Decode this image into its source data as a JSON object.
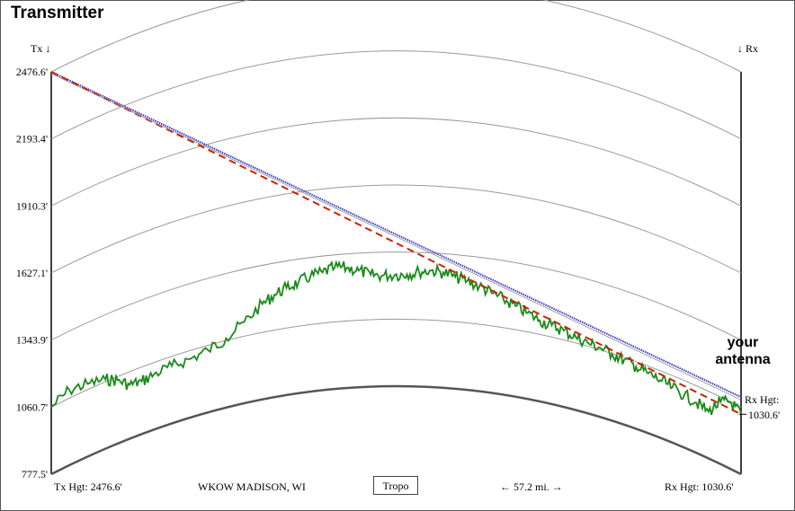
{
  "title": "Transmitter",
  "tx_marker": "Tx ↓",
  "rx_marker": "↓ Rx",
  "antenna_label_line1": "your",
  "antenna_label_line2": "antenna",
  "rx_hgt_label": "Rx Hgt:",
  "rx_hgt_value": "1030.6'",
  "footer": {
    "tx_hgt": "Tx Hgt: 2476.6'",
    "station": "WKOW MADISON, WI",
    "button": "Tropo",
    "distance": "← 57.2 mi. →",
    "rx_hgt": "Rx Hgt: 1030.6'"
  },
  "colors": {
    "terrain": "#1a8a1a",
    "los_path": "#3333cc",
    "refracted_path": "#cc2200",
    "arcs": "#999999",
    "earth_curve": "#555555"
  },
  "chart_data": {
    "type": "line",
    "title": "Transmitter",
    "y_tick_labels": [
      "2476.6'",
      "2193.4'",
      "1910.3'",
      "1627.1'",
      "1343.9'",
      "1060.7'",
      "777.5'"
    ],
    "ylim": [
      777.5,
      2476.6
    ],
    "xlim": [
      0,
      57.2
    ],
    "x_unit": "mi.",
    "tx_height": 2476.6,
    "rx_height": 1030.6,
    "series": [
      {
        "role": "terrain",
        "x": [
          0,
          1.5,
          3,
          4.5,
          5.5,
          6.5,
          7.5,
          8.5,
          10,
          11.5,
          13,
          14.5,
          16,
          17.5,
          18.5,
          19.5,
          20.5,
          21.5,
          22.5,
          23.5,
          24.5,
          25.5,
          26.5,
          27.5,
          28.5,
          29.5,
          30.5,
          31.5,
          32.5,
          33.5,
          34.5,
          35.5,
          36.5,
          37.5,
          38.5,
          39.5,
          40.5,
          41.5,
          42.5,
          43.5,
          44.5,
          45.5,
          46.5,
          47.5,
          48.5,
          49.5,
          50.5,
          51.5,
          52.5,
          53.5,
          54.5,
          55.5,
          56.3,
          57.2
        ],
        "values": [
          1060,
          1095,
          1085,
          1070,
          1045,
          1005,
          1000,
          1010,
          1020,
          1025,
          1040,
          1070,
          1120,
          1180,
          1210,
          1230,
          1245,
          1265,
          1275,
          1290,
          1285,
          1270,
          1250,
          1245,
          1248,
          1250,
          1262,
          1270,
          1265,
          1250,
          1238,
          1220,
          1200,
          1180,
          1160,
          1140,
          1120,
          1110,
          1100,
          1085,
          1075,
          1070,
          1060,
          1050,
          1040,
          1030,
          1020,
          1010,
          1000,
          990,
          975,
          1040,
          1060,
          1030.6
        ]
      },
      {
        "role": "line-of-sight",
        "x": [
          0,
          57.2
        ],
        "values": [
          2476.6,
          1103
        ]
      },
      {
        "role": "refracted-path",
        "x": [
          0,
          57.2
        ],
        "values": [
          2476.6,
          1030.6
        ]
      }
    ]
  }
}
